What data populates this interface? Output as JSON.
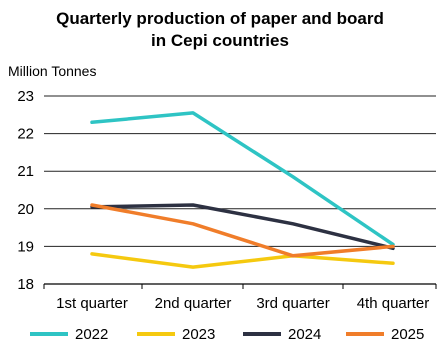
{
  "chart_data": {
    "type": "line",
    "title_line1": "Quarterly production of paper and board",
    "title_line2": "in Cepi countries",
    "unit_label": "Million Tonnes",
    "xlabel": "",
    "ylabel": "",
    "categories": [
      "1st quarter",
      "2nd quarter",
      "3rd quarter",
      "4th quarter"
    ],
    "ylim": [
      18,
      23
    ],
    "yticks": [
      18,
      19,
      20,
      21,
      22,
      23
    ],
    "grid": "horizontal",
    "legend_position": "bottom",
    "series": [
      {
        "name": "2022",
        "color": "#2ec4c4",
        "values": [
          22.3,
          22.55,
          20.85,
          19.05
        ]
      },
      {
        "name": "2023",
        "color": "#f5c90f",
        "values": [
          18.8,
          18.45,
          18.75,
          18.55
        ]
      },
      {
        "name": "2024",
        "color": "#2d3142",
        "values": [
          20.05,
          20.1,
          19.6,
          18.95
        ]
      },
      {
        "name": "2025",
        "color": "#f07d2a",
        "values": [
          20.1,
          19.6,
          18.75,
          19.0
        ]
      }
    ]
  }
}
